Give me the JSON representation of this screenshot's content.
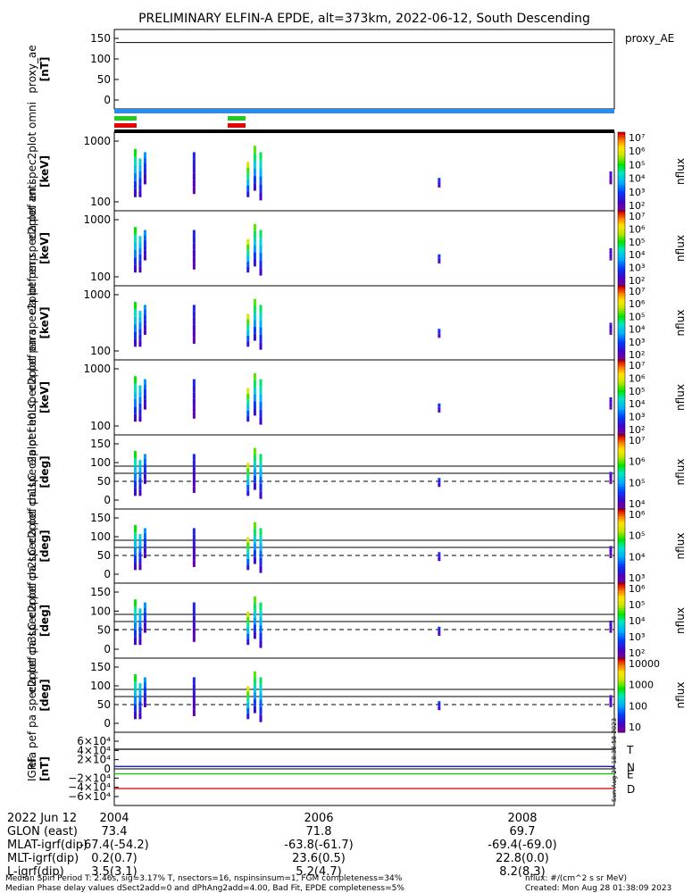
{
  "chart_data": {
    "type": "heatmap",
    "title": "PRELIMINARY ELFIN-A EPDE, alt=373km, 2022-06-12, South Descending",
    "xaxis": {
      "tick_labels": [
        "2004",
        "2006",
        "2008"
      ],
      "date": "2022 Jun 12"
    },
    "panels": [
      {
        "id": "proxy_ae",
        "ylabel": "proxy_ae [nT]",
        "right_label": "proxy_AE",
        "yticks": [
          "150",
          "100",
          "50",
          "0"
        ],
        "type": "line",
        "approx_value": 140
      },
      {
        "id": "omni",
        "ylabel": "ela pef en spec2plot omni [keV]",
        "yticks": [
          "1000",
          "100"
        ],
        "colorbar_label": "nflux",
        "cbar_ticks": [
          "10⁷",
          "10⁶",
          "10⁵",
          "10⁴",
          "10³",
          "10²"
        ]
      },
      {
        "id": "anti",
        "ylabel": "ela pef en spec2plot anti [keV]",
        "yticks": [
          "1000",
          "100"
        ],
        "colorbar_label": "nflux",
        "cbar_ticks": [
          "10⁷",
          "10⁶",
          "10⁵",
          "10⁴",
          "10³",
          "10²"
        ]
      },
      {
        "id": "perp",
        "ylabel": "ela pef en spec2plot perp [keV]",
        "yticks": [
          "1000",
          "100"
        ],
        "colorbar_label": "nflux",
        "cbar_ticks": [
          "10⁷",
          "10⁶",
          "10⁵",
          "10⁴",
          "10³",
          "10²"
        ]
      },
      {
        "id": "para",
        "ylabel": "ela pef en spec2plot para [keV]",
        "yticks": [
          "1000",
          "100"
        ],
        "colorbar_label": "nflux",
        "cbar_ticks": [
          "10⁷",
          "10⁶",
          "10⁵",
          "10⁴",
          "10³",
          "10²"
        ]
      },
      {
        "id": "ch0LC",
        "ylabel": "ela pef pa spec2plot ch0LC [deg]",
        "yticks": [
          "150",
          "100",
          "50",
          "0"
        ],
        "colorbar_label": "nflux",
        "cbar_ticks": [
          "10⁷",
          "10⁶",
          "10⁵",
          "10⁴"
        ]
      },
      {
        "id": "ch1LC",
        "ylabel": "ela pef pa spec2plot ch1LC [deg]",
        "yticks": [
          "150",
          "100",
          "50",
          "0"
        ],
        "colorbar_label": "nflux",
        "cbar_ticks": [
          "10⁶",
          "10⁵",
          "10⁴",
          "10³"
        ]
      },
      {
        "id": "ch2LC",
        "ylabel": "ela pef pa spec2plot ch2LC [deg]",
        "yticks": [
          "150",
          "100",
          "50",
          "0"
        ],
        "colorbar_label": "nflux",
        "cbar_ticks": [
          "10⁶",
          "10⁵",
          "10⁴",
          "10³",
          "10²"
        ]
      },
      {
        "id": "ch3LC",
        "ylabel": "ela pef pa spec2plot ch3LC [deg]",
        "yticks": [
          "150",
          "100",
          "50",
          "0"
        ],
        "colorbar_label": "nflux",
        "cbar_ticks": [
          "10000",
          "1000",
          "100",
          "10"
        ]
      },
      {
        "id": "igrf",
        "ylabel": "IGRF [nT]",
        "yticks": [
          "6×10⁴",
          "4×10⁴",
          "2×10⁴",
          "0",
          "−2×10⁴",
          "−4×10⁴",
          "−6×10⁴"
        ],
        "series": [
          {
            "name": "T",
            "color": "#000000",
            "value": 40000
          },
          {
            "name": "N",
            "color": "#0000cc",
            "value": 5000
          },
          {
            "name": "E",
            "color": "#00cc00",
            "value": -10000
          },
          {
            "name": "D",
            "color": "#cc0000",
            "value": -40000
          }
        ]
      }
    ],
    "orbit_table": {
      "rows": [
        {
          "label": "GLON (east)",
          "values": [
            "73.4",
            "71.8",
            "69.7"
          ]
        },
        {
          "label": "MLAT-igrf(dip)",
          "values": [
            "-67.4(-54.2)",
            "-63.8(-61.7)",
            "-69.4(-69.0)"
          ]
        },
        {
          "label": "MLT-igrf(dip)",
          "values": [
            "0.2(0.7)",
            "23.6(0.5)",
            "22.8(0.0)"
          ]
        },
        {
          "label": "L-igrf(dip)",
          "values": [
            "3.5(3.1)",
            "5.2(4.7)",
            "8.2(8.3)"
          ]
        }
      ]
    },
    "footer": {
      "line1": "Median Spin Period T: 2.46s, sig=3.17% T, nsectors=16, nspinsinsum=1, FGM completeness=34%",
      "line2": "Median Phase delay values dSect2add=0 and dPhAng2add=4.00, Bad Fit, EPDE completeness=5%",
      "unit": "nflux: #/(cm^2 s sr MeV)",
      "created": "Created: Mon Aug 28 01:38:09 2023",
      "side_stamp": "Sun Aug 27 18:38:58 2023"
    }
  }
}
